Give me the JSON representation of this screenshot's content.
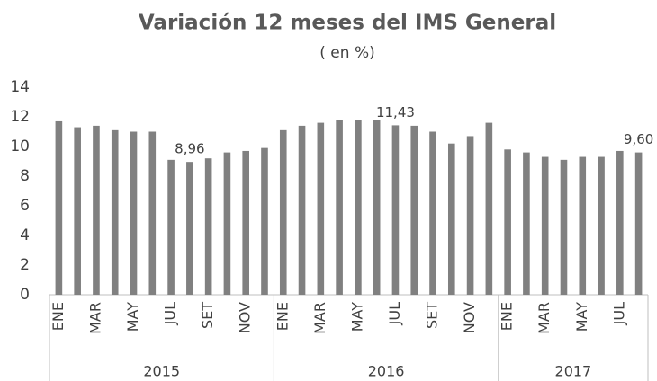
{
  "chart_data": {
    "type": "bar",
    "title": "Variación 12 meses del IMS General",
    "subtitle": "( en %)",
    "categories": [
      "ENE",
      null,
      "MAR",
      null,
      "MAY",
      null,
      "JUL",
      null,
      "SET",
      null,
      "NOV",
      null,
      "ENE",
      null,
      "MAR",
      null,
      "MAY",
      null,
      "JUL",
      null,
      "SET",
      null,
      "NOV",
      null,
      "ENE",
      null,
      "MAR",
      null,
      "MAY",
      null,
      "JUL",
      null
    ],
    "groups": [
      "2015",
      "2016",
      "2017"
    ],
    "values": [
      11.7,
      11.3,
      11.4,
      11.1,
      11.0,
      11.0,
      9.1,
      8.96,
      9.2,
      9.6,
      9.7,
      9.9,
      11.1,
      11.4,
      11.6,
      11.8,
      11.8,
      11.8,
      11.43,
      11.4,
      11.0,
      10.2,
      10.7,
      11.6,
      9.8,
      9.6,
      9.3,
      9.1,
      9.3,
      9.3,
      9.7,
      9.6
    ],
    "value_labels": [
      null,
      null,
      null,
      null,
      null,
      null,
      null,
      "8,96",
      null,
      null,
      null,
      null,
      null,
      null,
      null,
      null,
      null,
      null,
      "11,43",
      null,
      null,
      null,
      null,
      null,
      null,
      null,
      null,
      null,
      null,
      null,
      null,
      "9,60"
    ],
    "color": "#808080",
    "ylim": [
      0,
      14
    ],
    "yticks": [
      0,
      2,
      4,
      6,
      8,
      10,
      12,
      14
    ],
    "grid": false
  }
}
